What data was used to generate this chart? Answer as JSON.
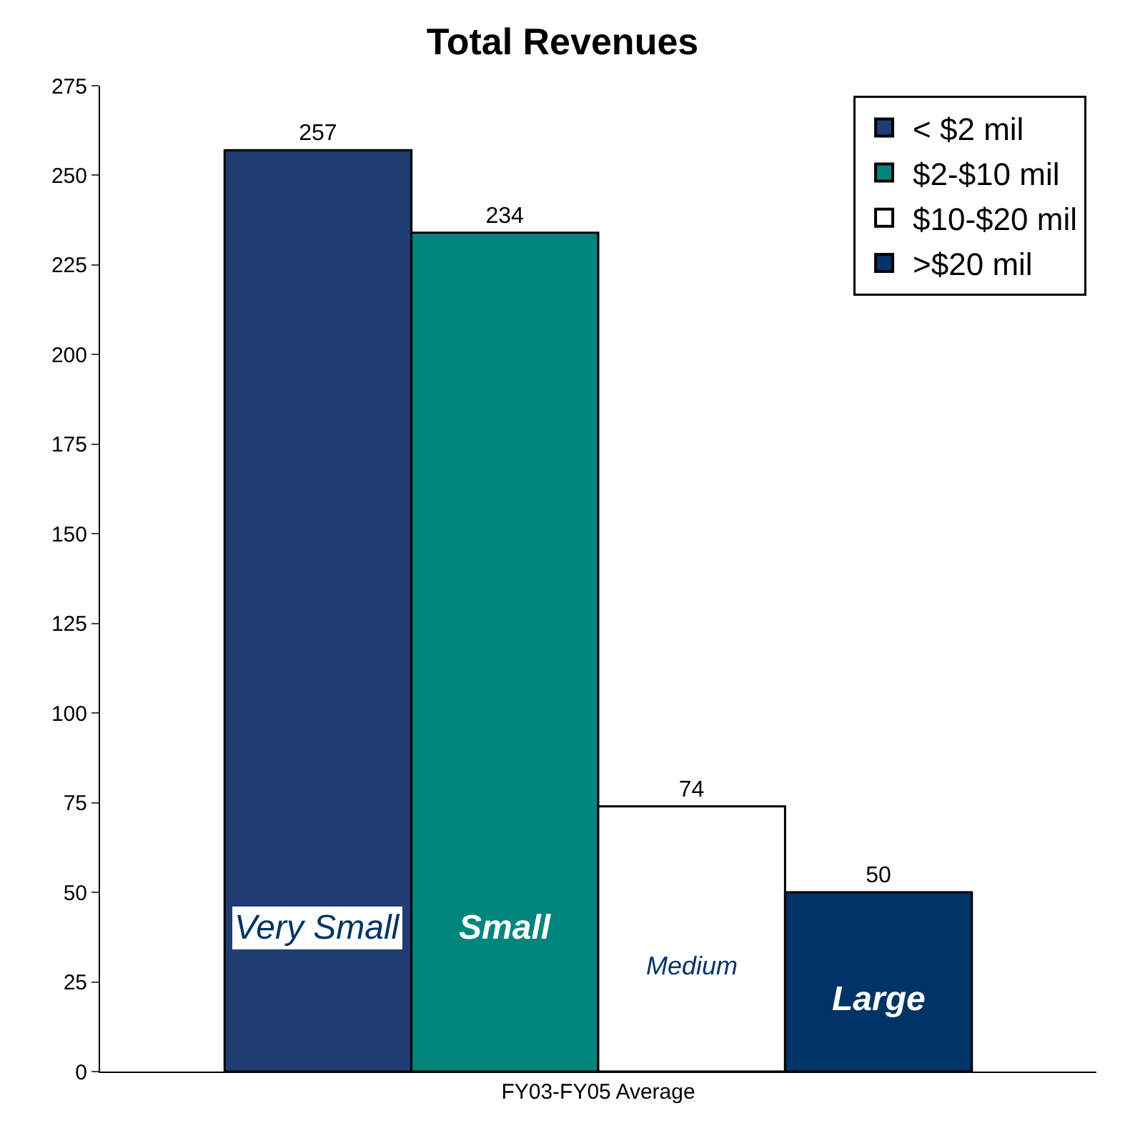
{
  "chart_data": {
    "type": "bar",
    "title": "Total Revenues",
    "categories": [
      "FY03-FY05 Average"
    ],
    "series": [
      {
        "name": "< $2 mil",
        "color": "#1f3d73",
        "values": [
          257
        ]
      },
      {
        "name": "$2-$10 mil",
        "color": "#00857d",
        "values": [
          234
        ]
      },
      {
        "name": "$10-$20 mil",
        "color": "#ffffff",
        "values": [
          74
        ]
      },
      {
        "name": ">$20 mil",
        "color": "#003366",
        "values": [
          50
        ]
      }
    ],
    "ylim": [
      0,
      275
    ],
    "yticks": [
      0,
      25,
      50,
      75,
      100,
      125,
      150,
      175,
      200,
      225,
      250,
      275
    ],
    "data_labels": true,
    "legend": "top right",
    "grid": false,
    "annotations": [
      "Very Small",
      "Small",
      "Medium",
      "Large"
    ]
  }
}
